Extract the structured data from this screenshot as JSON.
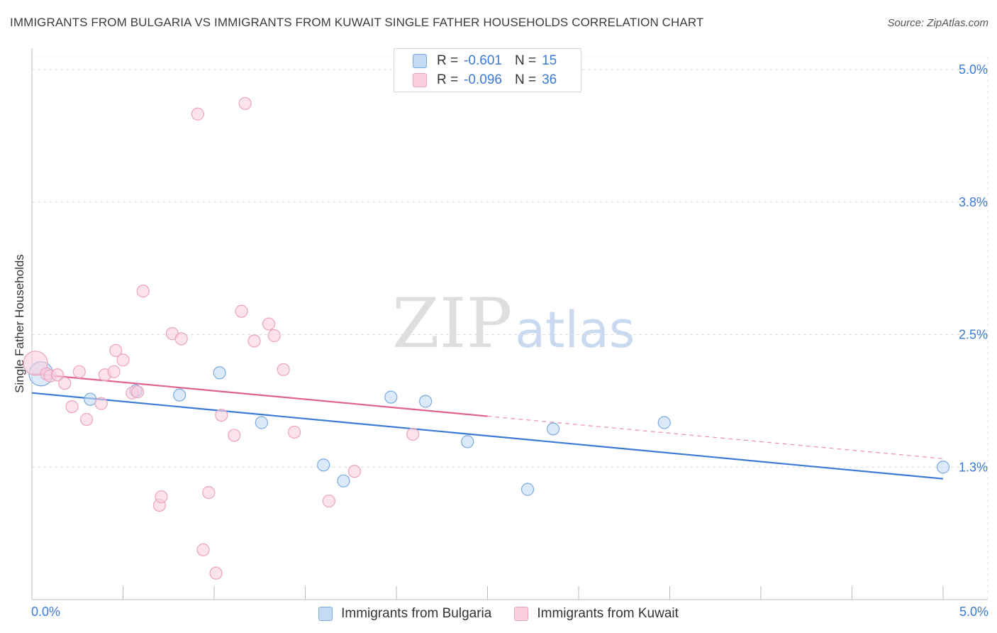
{
  "chart_data": {
    "type": "scatter",
    "title": "IMMIGRANTS FROM BULGARIA VS IMMIGRANTS FROM KUWAIT SINGLE FATHER HOUSEHOLDS CORRELATION CHART",
    "source": "Source: ZipAtlas.com",
    "ylabel": "Single Father Households",
    "xlim": [
      0.0,
      5.0
    ],
    "ylim": [
      0.0,
      5.0
    ],
    "x_tick_labels": [
      "0.0%",
      "5.0%"
    ],
    "y_ticks": [
      {
        "value": 1.25,
        "label": "1.3%"
      },
      {
        "value": 2.5,
        "label": "2.5%"
      },
      {
        "value": 3.75,
        "label": "3.8%"
      },
      {
        "value": 5.0,
        "label": "5.0%"
      }
    ],
    "watermark": {
      "zip": "ZIP",
      "atlas": "atlas"
    },
    "legend": {
      "r_label": "R =",
      "n_label": "N ="
    },
    "series": [
      {
        "name": "Immigrants from Bulgaria",
        "color": "#7aaae0",
        "fill": "#c5dbf5",
        "line_color": "#3a7bd5",
        "R": "-0.601",
        "N": "15",
        "points": [
          {
            "x": 0.05,
            "y": 2.13,
            "big": true
          },
          {
            "x": 0.32,
            "y": 1.89
          },
          {
            "x": 0.57,
            "y": 1.97
          },
          {
            "x": 0.81,
            "y": 1.93
          },
          {
            "x": 1.03,
            "y": 2.14
          },
          {
            "x": 1.26,
            "y": 1.67
          },
          {
            "x": 1.6,
            "y": 1.27
          },
          {
            "x": 1.71,
            "y": 1.12
          },
          {
            "x": 1.97,
            "y": 1.91
          },
          {
            "x": 2.16,
            "y": 1.87
          },
          {
            "x": 2.39,
            "y": 1.49
          },
          {
            "x": 2.72,
            "y": 1.04
          },
          {
            "x": 2.86,
            "y": 1.61
          },
          {
            "x": 3.47,
            "y": 1.67
          },
          {
            "x": 5.0,
            "y": 1.25
          }
        ],
        "trend": {
          "x0": 0.0,
          "y0": 1.95,
          "x1": 5.0,
          "y1": 1.14,
          "dash_from": null
        }
      },
      {
        "name": "Immigrants from Kuwait",
        "color": "#eba3bb",
        "fill": "#f9cedd",
        "line_color": "#e0628d",
        "R": "-0.096",
        "N": "36",
        "points": [
          {
            "x": 0.02,
            "y": 2.23,
            "big": true
          },
          {
            "x": 0.08,
            "y": 2.13
          },
          {
            "x": 0.1,
            "y": 2.11
          },
          {
            "x": 0.14,
            "y": 2.12
          },
          {
            "x": 0.18,
            "y": 2.04
          },
          {
            "x": 0.22,
            "y": 1.82
          },
          {
            "x": 0.26,
            "y": 2.15
          },
          {
            "x": 0.3,
            "y": 1.7
          },
          {
            "x": 0.38,
            "y": 1.85
          },
          {
            "x": 0.4,
            "y": 2.12
          },
          {
            "x": 0.45,
            "y": 2.15
          },
          {
            "x": 0.46,
            "y": 2.35
          },
          {
            "x": 0.5,
            "y": 2.26
          },
          {
            "x": 0.55,
            "y": 1.95
          },
          {
            "x": 0.58,
            "y": 1.96
          },
          {
            "x": 0.61,
            "y": 2.91
          },
          {
            "x": 0.7,
            "y": 0.89
          },
          {
            "x": 0.71,
            "y": 0.97
          },
          {
            "x": 0.77,
            "y": 2.51
          },
          {
            "x": 0.82,
            "y": 2.46
          },
          {
            "x": 0.91,
            "y": 4.58
          },
          {
            "x": 0.94,
            "y": 0.47
          },
          {
            "x": 0.97,
            "y": 1.01
          },
          {
            "x": 1.01,
            "y": 0.25
          },
          {
            "x": 1.04,
            "y": 1.74
          },
          {
            "x": 1.11,
            "y": 1.55
          },
          {
            "x": 1.15,
            "y": 2.72
          },
          {
            "x": 1.17,
            "y": 4.68
          },
          {
            "x": 1.22,
            "y": 2.44
          },
          {
            "x": 1.3,
            "y": 2.6
          },
          {
            "x": 1.33,
            "y": 2.49
          },
          {
            "x": 1.38,
            "y": 2.17
          },
          {
            "x": 1.44,
            "y": 1.58
          },
          {
            "x": 1.63,
            "y": 0.93
          },
          {
            "x": 1.77,
            "y": 1.21
          },
          {
            "x": 2.09,
            "y": 1.56
          }
        ],
        "trend": {
          "x0": 0.0,
          "y0": 2.13,
          "x1": 5.0,
          "y1": 1.33,
          "dash_from": 2.5
        }
      }
    ]
  }
}
